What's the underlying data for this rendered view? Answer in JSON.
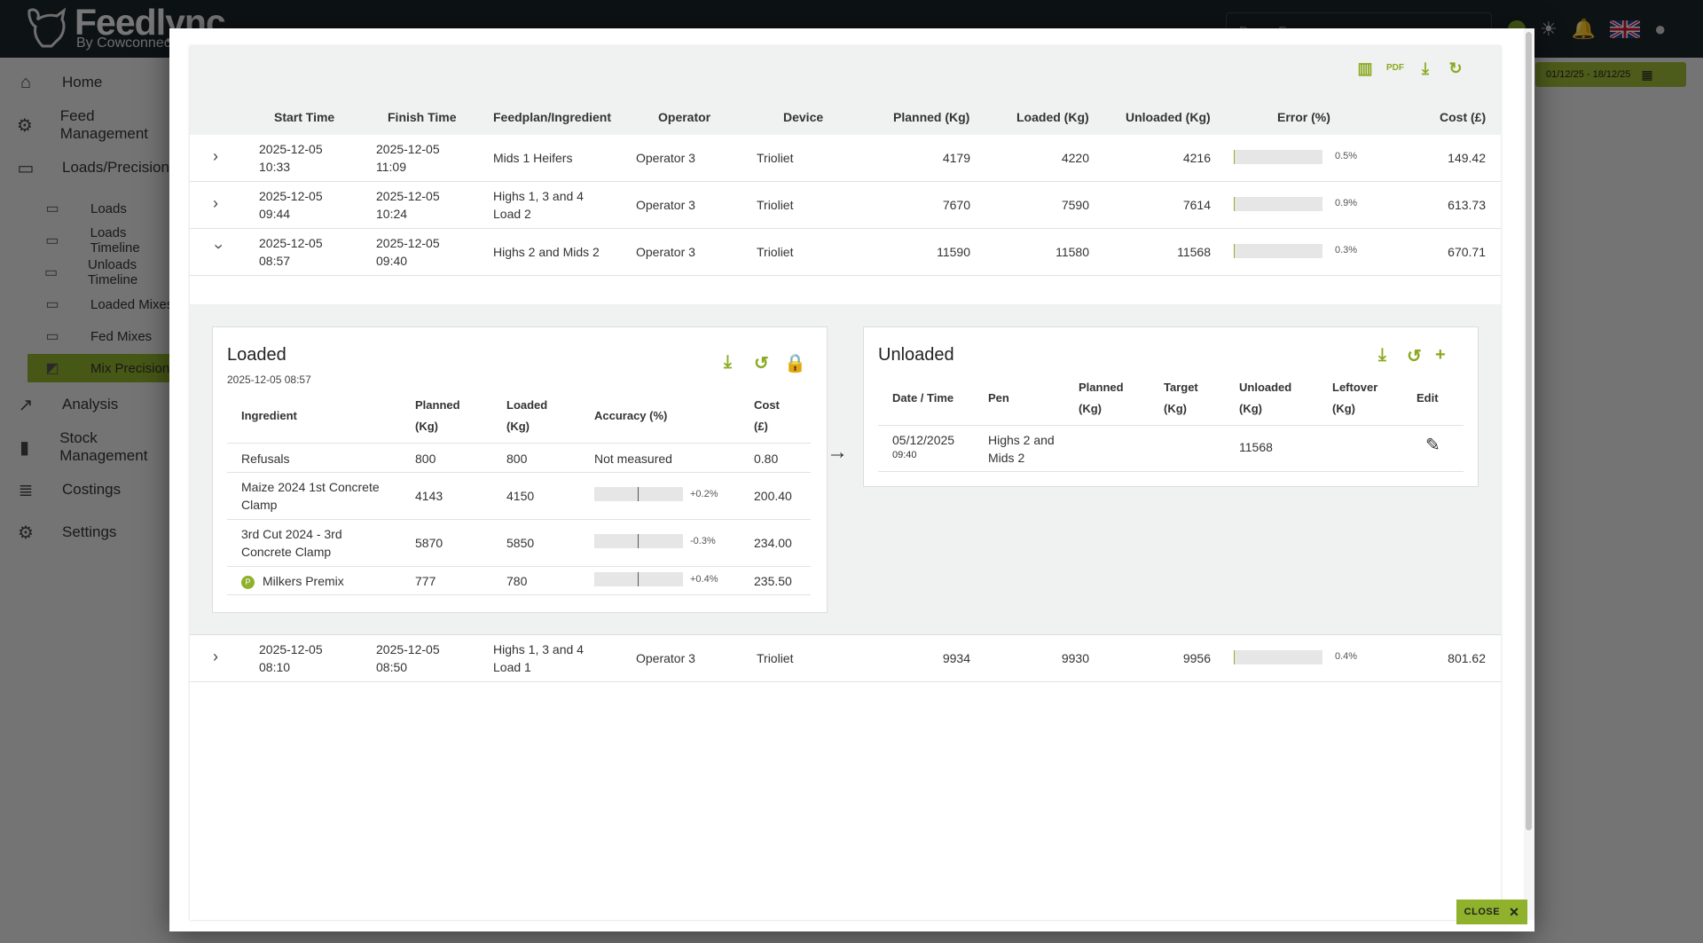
{
  "app": {
    "logo_name": "Feedlync",
    "logo_sub": "By Cowconnect",
    "farm_selector": "Demo Farm",
    "date_range": "01/12/25 - 18/12/25"
  },
  "sidebar": {
    "items": [
      {
        "label": "Home",
        "icon": "home-icon"
      },
      {
        "label": "Feed Management",
        "icon": "feed-icon"
      },
      {
        "label": "Loads/Precision",
        "icon": "wagon-icon"
      },
      {
        "label": "Analysis",
        "icon": "trend-icon"
      },
      {
        "label": "Stock Management",
        "icon": "silo-icon"
      },
      {
        "label": "Costings",
        "icon": "costings-icon"
      },
      {
        "label": "Settings",
        "icon": "gear-icon"
      }
    ],
    "subitems": [
      {
        "label": "Loads"
      },
      {
        "label": "Loads Timeline"
      },
      {
        "label": "Unloads Timeline"
      },
      {
        "label": "Loaded Mixes"
      },
      {
        "label": "Fed Mixes"
      },
      {
        "label": "Mix Precision",
        "active": true
      }
    ]
  },
  "toolbar": {
    "icons": [
      "columns-icon",
      "pdf-icon",
      "download-icon",
      "refresh-icon"
    ]
  },
  "table": {
    "headers": [
      "Start Time",
      "Finish Time",
      "Feedplan/Ingredient",
      "Operator",
      "Device",
      "Planned (Kg)",
      "Loaded (Kg)",
      "Unloaded (Kg)",
      "Error (%)",
      "Cost (£)"
    ],
    "rows": [
      {
        "start_date": "2025-12-05",
        "start_time": "10:33",
        "finish_date": "2025-12-05",
        "finish_time": "11:09",
        "feedplan": "Mids 1 Heifers",
        "operator": "Operator 3",
        "device": "Trioliet",
        "planned": "4179",
        "loaded": "4220",
        "unloaded": "4216",
        "error": "0.5%",
        "error_value": 0.5,
        "cost": "149.42",
        "expanded": false
      },
      {
        "start_date": "2025-12-05",
        "start_time": "09:44",
        "finish_date": "2025-12-05",
        "finish_time": "10:24",
        "feedplan": "Highs 1, 3 and 4 Load 2",
        "operator": "Operator 3",
        "device": "Trioliet",
        "planned": "7670",
        "loaded": "7590",
        "unloaded": "7614",
        "error": "0.9%",
        "error_value": 0.9,
        "cost": "613.73",
        "expanded": false
      },
      {
        "start_date": "2025-12-05",
        "start_time": "08:57",
        "finish_date": "2025-12-05",
        "finish_time": "09:40",
        "feedplan": "Highs 2 and Mids 2",
        "operator": "Operator 3",
        "device": "Trioliet",
        "planned": "11590",
        "loaded": "11580",
        "unloaded": "11568",
        "error": "0.3%",
        "error_value": 0.3,
        "cost": "670.71",
        "expanded": true
      },
      {
        "start_date": "2025-12-05",
        "start_time": "08:10",
        "finish_date": "2025-12-05",
        "finish_time": "08:50",
        "feedplan": "Highs 1, 3 and 4 Load 1",
        "operator": "Operator 3",
        "device": "Trioliet",
        "planned": "9934",
        "loaded": "9930",
        "unloaded": "9956",
        "error": "0.4%",
        "error_value": 0.4,
        "cost": "801.62",
        "expanded": false
      }
    ]
  },
  "loaded_panel": {
    "title": "Loaded",
    "timestamp": "2025-12-05 08:57",
    "headers": {
      "ingredient": "Ingredient",
      "planned": "Planned (Kg)",
      "loaded": "Loaded (Kg)",
      "accuracy": "Accuracy (%)",
      "cost": "Cost (£)"
    },
    "rows": [
      {
        "ingredient": "Refusals",
        "planned": "800",
        "loaded": "800",
        "accuracy": "Not measured",
        "cost": "0.80"
      },
      {
        "ingredient": "Maize 2024 1st Concrete Clamp",
        "planned": "4143",
        "loaded": "4150",
        "accuracy": "+0.2%",
        "accuracy_value": 0.2,
        "cost": "200.40"
      },
      {
        "ingredient": "3rd Cut 2024 - 3rd Concrete Clamp",
        "planned": "5870",
        "loaded": "5850",
        "accuracy": "-0.3%",
        "accuracy_value": -0.3,
        "cost": "234.00"
      },
      {
        "ingredient": "Milkers Premix",
        "badge": "P",
        "planned": "777",
        "loaded": "780",
        "accuracy": "+0.4%",
        "accuracy_value": 0.4,
        "cost": "235.50"
      }
    ]
  },
  "unloaded_panel": {
    "title": "Unloaded",
    "headers": {
      "datetime": "Date / Time",
      "pen": "Pen",
      "planned": "Planned (Kg)",
      "target": "Target (Kg)",
      "unloaded": "Unloaded (Kg)",
      "leftover": "Leftover (Kg)",
      "edit": "Edit"
    },
    "rows": [
      {
        "date": "05/12/2025",
        "time": "09:40",
        "pen": "Highs 2 and Mids 2",
        "planned": "",
        "target": "",
        "unloaded": "11568",
        "leftover": ""
      }
    ]
  },
  "close_button": "CLOSE",
  "colors": {
    "accent": "#8fb12b",
    "topbar": "#1a242b"
  }
}
